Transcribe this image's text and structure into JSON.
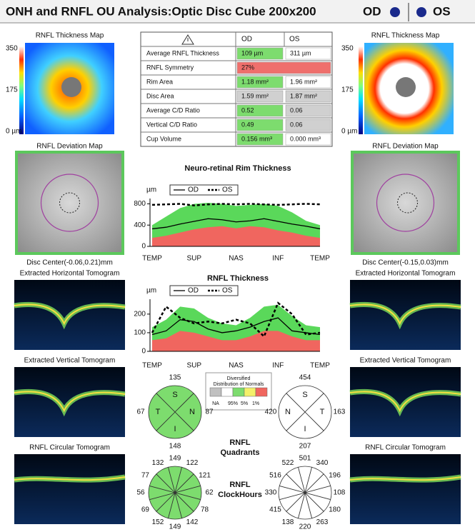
{
  "header": {
    "title": "ONH and RNFL OU Analysis:Optic Disc Cube 200x200",
    "od": "OD",
    "os": "OS"
  },
  "eyes": [
    {
      "thickness_map_title": "RNFL Thickness Map",
      "scale_labels": [
        "350",
        "175",
        "0 µm"
      ],
      "deviation_map_title": "RNFL Deviation Map",
      "disc_center": "Disc Center(-0.06,0.21)mm",
      "horizontal_tomogram_title": "Extracted Horizontal Tomogram",
      "vertical_tomogram_title": "Extracted Vertical Tomogram",
      "circular_tomogram_title": "RNFL Circular Tomogram"
    },
    {
      "thickness_map_title": "RNFL Thickness Map",
      "scale_labels": [
        "350",
        "175",
        "0 µm"
      ],
      "deviation_map_title": "RNFL Deviation Map",
      "disc_center": "Disc Center(-0.15,0.03)mm",
      "horizontal_tomogram_title": "Extracted Horizontal Tomogram",
      "vertical_tomogram_title": "Extracted Vertical Tomogram",
      "circular_tomogram_title": "RNFL Circular Tomogram"
    }
  ],
  "table": {
    "columns": [
      "OD",
      "OS"
    ],
    "rows": [
      {
        "label": "Average RNFL Thickness",
        "cells": [
          "109 µm",
          "311 µm"
        ],
        "colors": [
          "#7ddc6e",
          "#ffffff"
        ]
      },
      {
        "label": "RNFL Symmetry",
        "cells": [
          "27%"
        ],
        "colors": [
          "#ef6f6c"
        ]
      },
      {
        "label": "Rim Area",
        "cells": [
          "1.18 mm²",
          "1.96 mm²"
        ],
        "colors": [
          "#7ddc6e",
          "#ffffff"
        ]
      },
      {
        "label": "Disc Area",
        "cells": [
          "1.59 mm²",
          "1.87 mm²"
        ],
        "colors": [
          "#d0d0d0",
          "#d0d0d0"
        ]
      },
      {
        "label": "Average C/D Ratio",
        "cells": [
          "0.52",
          "0.06"
        ],
        "colors": [
          "#7ddc6e",
          "#d0d0d0"
        ]
      },
      {
        "label": "Vertical C/D Ratio",
        "cells": [
          "0.49",
          "0.06"
        ],
        "colors": [
          "#7ddc6e",
          "#d0d0d0"
        ]
      },
      {
        "label": "Cup Volume",
        "cells": [
          "0.156 mm³",
          "0.000 mm³"
        ],
        "colors": [
          "#7ddc6e",
          "#ffffff"
        ]
      }
    ]
  },
  "rim_chart": {
    "type": "line",
    "title": "Neuro-retinal Rim Thickness",
    "unit": "µm",
    "categories": [
      "TEMP",
      "SUP",
      "NAS",
      "INF",
      "TEMP"
    ],
    "ylim": [
      0,
      900
    ],
    "yticks": [
      0,
      400,
      800
    ],
    "bands": [
      {
        "color": "#5ad85a",
        "values": [
          400,
          560,
          720,
          800,
          820,
          800,
          760,
          780,
          800,
          760,
          640,
          480,
          400
        ]
      },
      {
        "color": "#f0665f",
        "values": [
          160,
          200,
          260,
          320,
          360,
          380,
          340,
          380,
          360,
          300,
          260,
          200,
          160
        ]
      }
    ],
    "series": [
      {
        "name": "OD",
        "color": "#000000",
        "dash": false,
        "values": [
          330,
          360,
          420,
          470,
          520,
          500,
          460,
          480,
          520,
          470,
          420,
          380,
          330
        ]
      },
      {
        "name": "OS",
        "color": "#000000",
        "dash": true,
        "values": [
          780,
          790,
          800,
          770,
          790,
          800,
          790,
          800,
          790,
          780,
          790,
          800,
          790
        ]
      }
    ]
  },
  "rnfl_chart": {
    "type": "line",
    "title": "RNFL Thickness",
    "unit": "µm",
    "categories": [
      "TEMP",
      "SUP",
      "NAS",
      "INF",
      "TEMP"
    ],
    "ylim": [
      0,
      280
    ],
    "yticks": [
      0,
      100,
      200
    ],
    "bands": [
      {
        "color": "#5ad85a",
        "values": [
          130,
          170,
          240,
          230,
          180,
          150,
          140,
          180,
          240,
          250,
          190,
          140,
          130
        ]
      },
      {
        "color": "#f0665f",
        "values": [
          60,
          70,
          110,
          100,
          80,
          60,
          60,
          80,
          110,
          110,
          80,
          60,
          60
        ]
      }
    ],
    "series": [
      {
        "name": "OD",
        "color": "#000000",
        "dash": false,
        "values": [
          90,
          110,
          170,
          160,
          120,
          100,
          110,
          130,
          160,
          180,
          110,
          100,
          90
        ]
      },
      {
        "name": "OS",
        "color": "#000000",
        "dash": true,
        "values": [
          100,
          240,
          180,
          150,
          160,
          150,
          170,
          150,
          80,
          260,
          200,
          90,
          100
        ]
      }
    ]
  },
  "legend": {
    "title": [
      "Diversified",
      "Distribution of Normals"
    ],
    "colors": [
      "#c0c0c0",
      "#ffffff",
      "#7ddc6e",
      "#f4f06a",
      "#f0665f"
    ],
    "labels": [
      "NA",
      "95%",
      "5%",
      "1%"
    ]
  },
  "quadrants": {
    "title": [
      "RNFL",
      "Quadrants"
    ],
    "od": {
      "color": "#7ddc6e",
      "letters": [
        "S",
        "N",
        "I",
        "T"
      ],
      "values": [
        135,
        87,
        148,
        67
      ]
    },
    "os": {
      "color": "#ffffff",
      "letters": [
        "S",
        "T",
        "I",
        "N"
      ],
      "values": [
        454,
        163,
        207,
        420
      ]
    }
  },
  "clockhours": {
    "title": [
      "RNFL",
      "ClockHours"
    ],
    "od": {
      "color": "#7ddc6e",
      "values": [
        149,
        122,
        121,
        62,
        78,
        142,
        149,
        152,
        69,
        56,
        77,
        132
      ]
    },
    "os": {
      "color": "#ffffff",
      "values": [
        501,
        340,
        196,
        108,
        180,
        263,
        220,
        138,
        415,
        330,
        516,
        522
      ]
    }
  }
}
